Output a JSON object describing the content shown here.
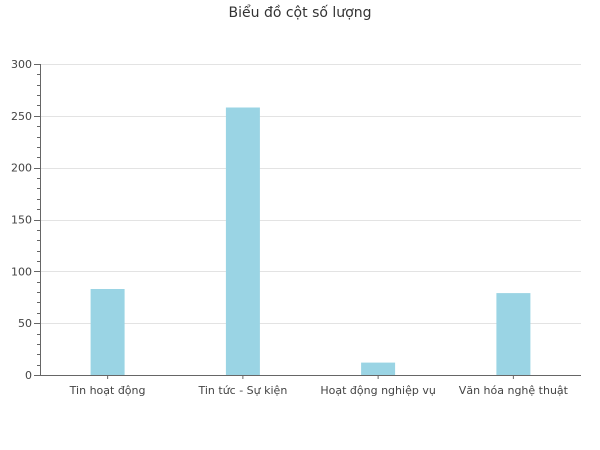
{
  "chart_data": {
    "type": "bar",
    "title": "Biểu đồ cột số lượng",
    "xlabel": "",
    "ylabel": "",
    "categories": [
      "Tin hoạt động",
      "Tin tức - Sự kiện",
      "Hoạt động nghiệp vụ",
      "Văn hóa nghệ thuật"
    ],
    "values": [
      83,
      258,
      12,
      79
    ],
    "ylim": [
      0,
      300
    ],
    "yticks": [
      0,
      50,
      100,
      150,
      200,
      250,
      300
    ],
    "minor_tick_step": 10,
    "grid": true,
    "legend": "none",
    "colors": {
      "bar": "#9ad4e4",
      "grid": "#e3e3e3",
      "axis": "#666666",
      "text": "#444444"
    }
  }
}
